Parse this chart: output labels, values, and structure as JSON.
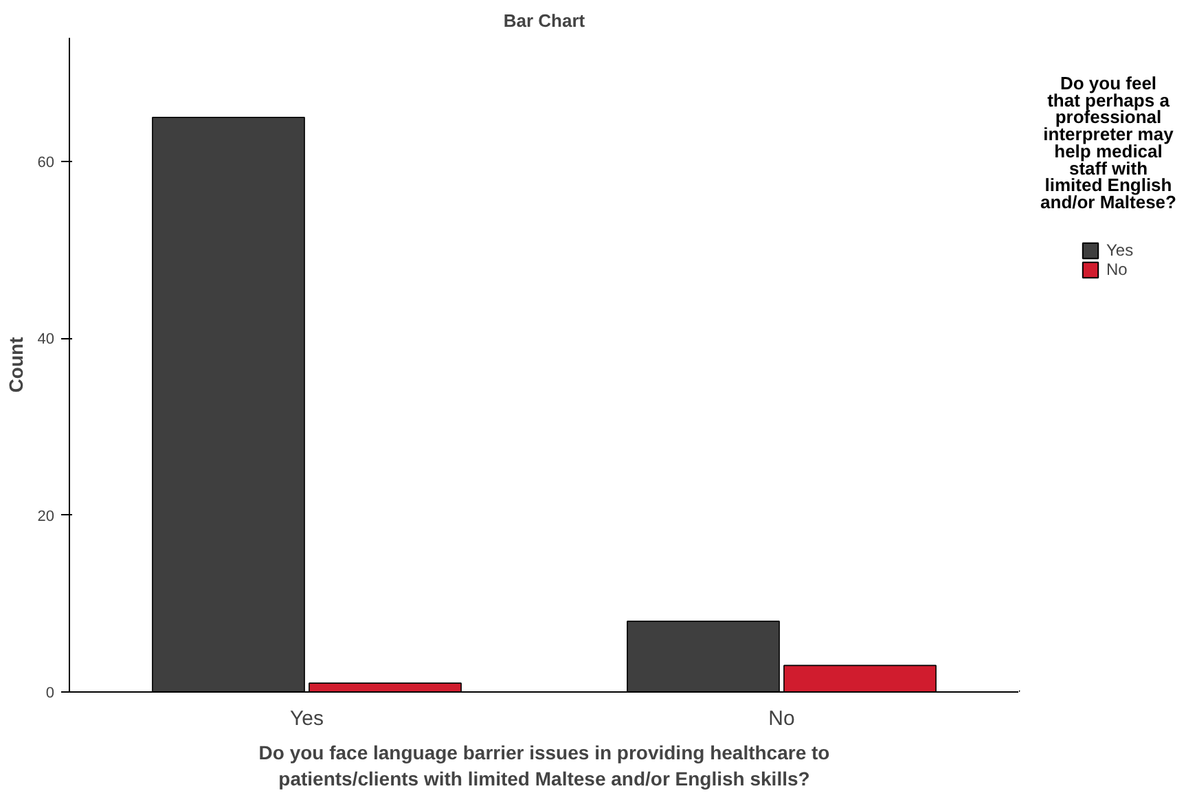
{
  "chart_data": {
    "type": "bar",
    "title": "Bar Chart",
    "xlabel": "Do you face language barrier issues in providing healthcare to patients/clients with limited Maltese and/or English skills?",
    "ylabel": "Count",
    "legend_title": "Do you feel that perhaps a professional interpreter may help medical staff with limited English and/or Maltese?",
    "categories": [
      "Yes",
      "No"
    ],
    "series": [
      {
        "name": "Yes",
        "color": "#3f3f3f",
        "values": [
          65,
          8
        ]
      },
      {
        "name": "No",
        "color": "#d01c2e",
        "values": [
          1,
          3
        ]
      }
    ],
    "ylim": [
      0,
      74
    ],
    "yticks": [
      0,
      20,
      40,
      60
    ],
    "grid": false,
    "legend": "right"
  }
}
